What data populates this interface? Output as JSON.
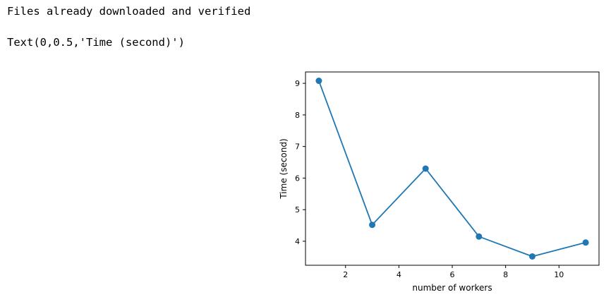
{
  "output": {
    "line1": "Files already downloaded and verified",
    "line2": "Text(0,0.5,'Time (second)')"
  },
  "chart_data": {
    "type": "line",
    "xlabel": "number of workers",
    "ylabel": "Time (second)",
    "x": [
      1,
      3,
      5,
      7,
      9,
      11
    ],
    "y": [
      9.08,
      4.52,
      6.3,
      4.15,
      3.52,
      3.96
    ],
    "xlim": [
      0.5,
      11.5
    ],
    "ylim": [
      3.24,
      9.36
    ],
    "xticks": [
      2,
      4,
      6,
      8,
      10
    ],
    "yticks": [
      4,
      5,
      6,
      7,
      8,
      9
    ],
    "grid": false,
    "marker": "circle",
    "color": "#1f77b4"
  }
}
